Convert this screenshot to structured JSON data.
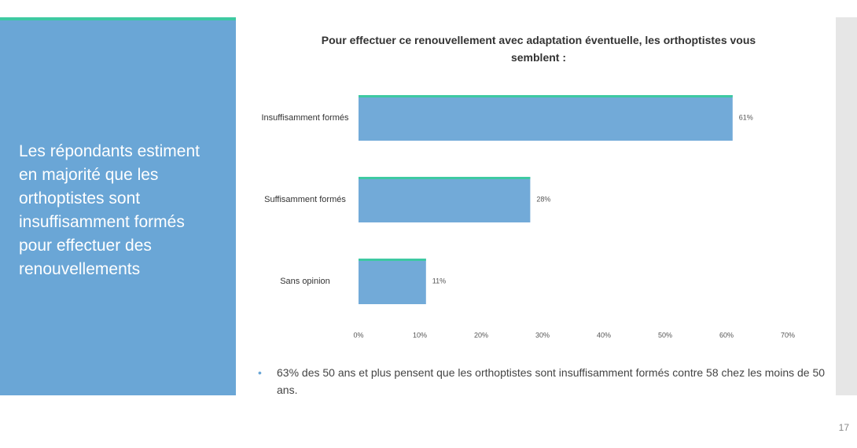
{
  "panel": {
    "text": "Les répondants estiment en majorité que les orthoptistes sont insuffisamment formés pour effectuer des renouvellements"
  },
  "chart_data": {
    "type": "bar",
    "orientation": "horizontal",
    "title": "Pour effectuer ce renouvellement avec adaptation éventuelle, les orthoptistes vous semblent :",
    "categories": [
      "Insuffisamment formés",
      "Suffisamment formés",
      "Sans opinion"
    ],
    "values": [
      61,
      28,
      11
    ],
    "value_labels": [
      "61%",
      "28%",
      "11%"
    ],
    "color": "#72aad8",
    "edge_color": "#3ec9a2",
    "xlim": [
      0,
      70
    ],
    "xticks": [
      {
        "value": 0,
        "label": "0%"
      },
      {
        "value": 10,
        "label": "10%"
      },
      {
        "value": 20,
        "label": "20%"
      },
      {
        "value": 30,
        "label": "30%"
      },
      {
        "value": 40,
        "label": "40%"
      },
      {
        "value": 50,
        "label": "50%"
      },
      {
        "value": 60,
        "label": "60%"
      },
      {
        "value": 70,
        "label": "70%"
      }
    ]
  },
  "bullet": "63% des 50 ans et plus pensent que les orthoptistes sont insuffisamment formés contre 58 chez les moins de 50 ans.",
  "page_number": "17"
}
